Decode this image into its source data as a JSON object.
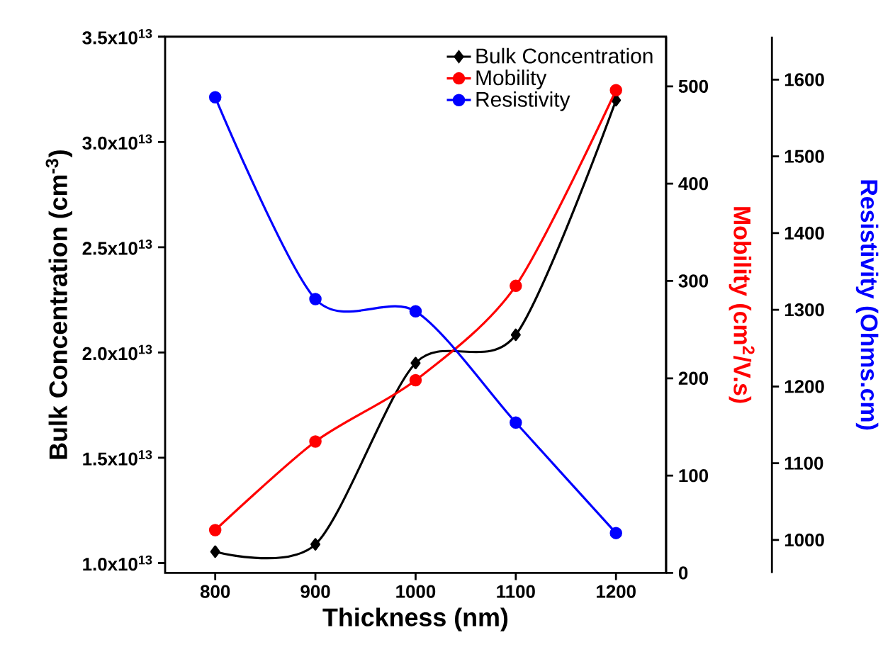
{
  "chart_data": {
    "type": "line",
    "xlabel": "Thickness (nm)",
    "ylabel": "Bulk Concentration (cm$^{-3}$)",
    "y2label": "Mobility (cm$^{2}$/V.s)",
    "y3label": "Resistivity (Ohms.cm)",
    "x": [
      800,
      900,
      1000,
      1100,
      1200
    ],
    "series": [
      {
        "name": "Bulk Concentration",
        "color": "#000000",
        "marker": "diamond",
        "values": [
          10540000000000.0,
          10890000000000.0,
          19500000000000.0,
          20840000000000.0,
          31980000000000.0
        ]
      },
      {
        "name": "Mobility",
        "color": "#ff0000",
        "marker": "circle",
        "axis": "y2",
        "values": [
          44,
          135,
          198,
          295,
          496
        ]
      },
      {
        "name": "Resistivity",
        "color": "#0000ff",
        "marker": "circle",
        "axis": "y3",
        "values": [
          1577,
          1314,
          1298,
          1153,
          1009
        ]
      }
    ],
    "xlim": [
      750,
      1250
    ],
    "xticks": [
      800,
      900,
      1000,
      1100,
      1200
    ],
    "ylim": [
      9530000000000.0,
      35000000000000.0
    ],
    "yticks": [
      {
        "value": 10000000000000.0,
        "label": "1.0x10$^{13}$"
      },
      {
        "value": 15000000000000.0,
        "label": "1.5x10$^{13}$"
      },
      {
        "value": 20000000000000.0,
        "label": "2.0x10$^{13}$"
      },
      {
        "value": 25000000000000.0,
        "label": "2.5x10$^{13}$"
      },
      {
        "value": 30000000000000.0,
        "label": "3.0x10$^{13}$"
      },
      {
        "value": 35000000000000.0,
        "label": "3.5x10$^{13}$"
      }
    ],
    "y2lim": [
      0,
      551
    ],
    "y2ticks": [
      0,
      100,
      200,
      300,
      400,
      500
    ],
    "y3lim": [
      957,
      1656
    ],
    "y3ticks": [
      1000,
      1100,
      1200,
      1300,
      1400,
      1500,
      1600
    ],
    "legend": "top right",
    "grid": false
  }
}
